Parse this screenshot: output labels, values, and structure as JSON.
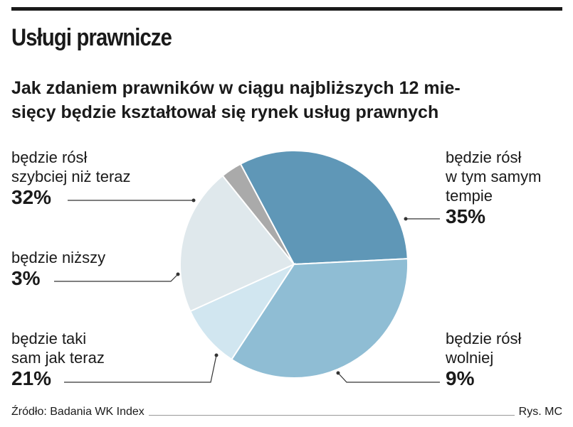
{
  "title": "Usługi prawnicze",
  "subtitle_lines": [
    "Jak zdaniem prawników w ciągu najbliższych 12 mie-",
    "sięcy będzie kształtował się rynek usług prawnych"
  ],
  "footer": {
    "source": "Źródło: Badania WK Index",
    "credit": "Rys. MC"
  },
  "chart_data": {
    "type": "pie",
    "title": "Usługi prawnicze",
    "subtitle": "Jak zdaniem prawników w ciągu najbliższych 12 miesięcy będzie kształtował się rynek usług prawnych",
    "slices": [
      {
        "label_lines": [
          "będzie rósł",
          "szybciej niż teraz"
        ],
        "value": 32,
        "pct": "32%",
        "color": "#5f97b7"
      },
      {
        "label_lines": [
          "będzie rósł",
          "w tym samym",
          "tempie"
        ],
        "value": 35,
        "pct": "35%",
        "color": "#8fbdd4"
      },
      {
        "label_lines": [
          "będzie rósł",
          "wolniej"
        ],
        "value": 9,
        "pct": "9%",
        "color": "#d1e6f0"
      },
      {
        "label_lines": [
          "będzie taki",
          "sam jak teraz"
        ],
        "value": 21,
        "pct": "21%",
        "color": "#dfe8ec"
      },
      {
        "label_lines": [
          "będzie niższy"
        ],
        "value": 3,
        "pct": "3%",
        "color": "#aaaaaa"
      }
    ]
  }
}
